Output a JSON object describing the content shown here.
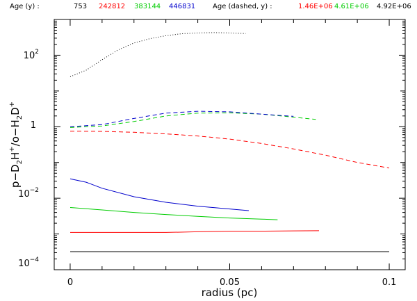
{
  "chart_data": {
    "type": "line",
    "title": "",
    "xlabel": "radius (pc)",
    "ylabel": "p-D2H+/o-H2D+",
    "xlim": [
      -0.005,
      0.105
    ],
    "ylim": [
      0.0001,
      1000
    ],
    "yscale": "log",
    "grid": false,
    "x_ticks": [
      0,
      0.05,
      0.1
    ],
    "x_tick_labels": [
      "0",
      "0.05",
      "0.1"
    ],
    "y_ticks": [
      0.0001,
      0.01,
      1,
      100
    ],
    "legend": {
      "placement": "top",
      "solid_heading": "Age (y) :",
      "solid_entries": [
        {
          "label": "753",
          "color": "#000000"
        },
        {
          "label": "242812",
          "color": "#ff0000"
        },
        {
          "label": "383144",
          "color": "#00cc00"
        },
        {
          "label": "446831",
          "color": "#0000cc"
        }
      ],
      "dashed_heading": "Age (dashed, y) :",
      "dashed_entries": [
        {
          "label": "1.46E+06",
          "color": "#ff0000"
        },
        {
          "label": "4.61E+06",
          "color": "#00cc00"
        },
        {
          "label": "4.92E+06",
          "color": "#000000"
        }
      ]
    },
    "series": [
      {
        "color": "#000000",
        "style": "solid",
        "x": [
          0,
          0.01,
          0.02,
          0.03,
          0.04,
          0.05,
          0.06,
          0.07,
          0.08,
          0.09,
          0.1
        ],
        "y": [
          0.00032,
          0.00032,
          0.00032,
          0.00032,
          0.00032,
          0.00032,
          0.00032,
          0.00032,
          0.00032,
          0.00032,
          0.00032
        ]
      },
      {
        "color": "#ff0000",
        "style": "solid",
        "x": [
          0,
          0.01,
          0.02,
          0.03,
          0.04,
          0.05,
          0.06,
          0.07,
          0.078
        ],
        "y": [
          0.0011,
          0.0011,
          0.0011,
          0.0011,
          0.00115,
          0.0012,
          0.0012,
          0.00122,
          0.00123
        ]
      },
      {
        "color": "#00cc00",
        "style": "solid",
        "x": [
          0,
          0.01,
          0.02,
          0.03,
          0.04,
          0.05,
          0.06,
          0.065
        ],
        "y": [
          0.0055,
          0.0047,
          0.004,
          0.0035,
          0.0031,
          0.0028,
          0.0026,
          0.0025
        ]
      },
      {
        "color": "#0000cc",
        "style": "solid",
        "x": [
          0,
          0.005,
          0.01,
          0.02,
          0.03,
          0.04,
          0.05,
          0.056
        ],
        "y": [
          0.035,
          0.028,
          0.019,
          0.011,
          0.0077,
          0.006,
          0.005,
          0.0045
        ]
      },
      {
        "color": "#ff0000",
        "style": "dashed",
        "x": [
          0,
          0.01,
          0.02,
          0.03,
          0.04,
          0.05,
          0.06,
          0.07,
          0.08,
          0.09,
          0.1
        ],
        "y": [
          0.75,
          0.74,
          0.7,
          0.63,
          0.55,
          0.45,
          0.34,
          0.24,
          0.16,
          0.1,
          0.07
        ]
      },
      {
        "color": "#00cc00",
        "style": "dashed",
        "x": [
          0,
          0.01,
          0.02,
          0.03,
          0.04,
          0.05,
          0.06,
          0.07,
          0.077
        ],
        "y": [
          0.95,
          1.05,
          1.4,
          2.0,
          2.4,
          2.45,
          2.25,
          1.85,
          1.6
        ]
      },
      {
        "color": "#0000cc",
        "style": "dashed",
        "x": [
          0,
          0.01,
          0.02,
          0.03,
          0.04,
          0.05,
          0.06,
          0.07
        ],
        "y": [
          1.0,
          1.15,
          1.7,
          2.4,
          2.7,
          2.6,
          2.25,
          1.95
        ]
      },
      {
        "color": "#000000",
        "style": "dotted",
        "x": [
          0,
          0.005,
          0.01,
          0.015,
          0.02,
          0.025,
          0.03,
          0.035,
          0.04,
          0.045,
          0.05,
          0.055
        ],
        "y": [
          25,
          38,
          75,
          140,
          220,
          290,
          350,
          400,
          420,
          430,
          420,
          405
        ]
      }
    ]
  }
}
